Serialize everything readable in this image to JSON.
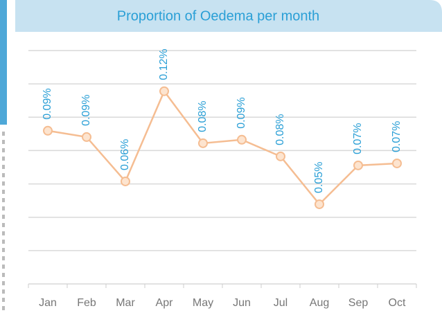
{
  "chart_data": {
    "type": "line",
    "title": "Proportion of Oedema  per month",
    "categories": [
      "Jan",
      "Feb",
      "Mar",
      "Apr",
      "May",
      "Jun",
      "Jul",
      "Aug",
      "Sep",
      "Oct"
    ],
    "series": [
      {
        "name": "Oedema",
        "color": "#f5bd92",
        "values": [
          0.0919,
          0.0881,
          0.0615,
          0.1156,
          0.0844,
          0.0865,
          0.0765,
          0.0478,
          0.0711,
          0.0723
        ],
        "value_labels": [
          "0.09%",
          "0.09%",
          "0.06%",
          "0.12%",
          "0.08%",
          "0.09%",
          "0.08%",
          "0.05%",
          "0.07%",
          "0.07%"
        ]
      }
    ],
    "ylim": [
      0,
      0.14
    ],
    "yticks": [
      0,
      0.02,
      0.04,
      0.06,
      0.08,
      0.1,
      0.12,
      0.14
    ],
    "grid": true
  }
}
